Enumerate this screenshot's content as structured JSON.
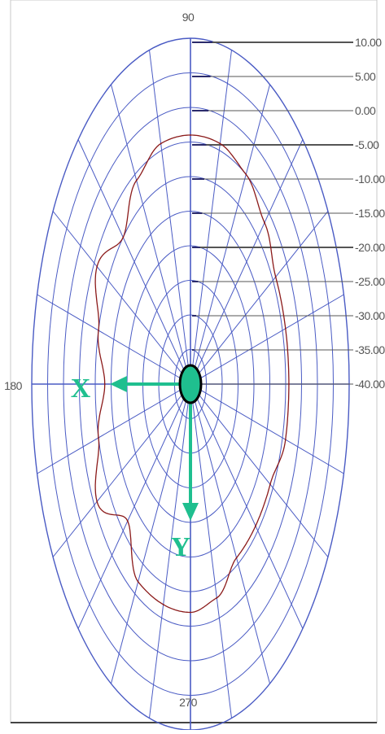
{
  "chart_data": {
    "type": "polar",
    "title": "",
    "angle_labels": [
      "90",
      "180",
      "270"
    ],
    "ring_labels": [
      "10.00",
      "5.00",
      "0.00",
      "-5.00",
      "-10.00",
      "-15.00",
      "-20.00",
      "-25.00",
      "-30.00",
      "-35.00",
      "-40.00"
    ],
    "radial_range": [
      -40,
      10
    ],
    "angular_grid_step_deg": 15,
    "grid": true,
    "series": [
      {
        "color": "#8b1a1a",
        "points": [
          {
            "angle": 0,
            "value": -9
          },
          {
            "angle": 15,
            "value": -9
          },
          {
            "angle": 30,
            "value": -9
          },
          {
            "angle": 45,
            "value": -7
          },
          {
            "angle": 60,
            "value": -5
          },
          {
            "angle": 75,
            "value": -4
          },
          {
            "angle": 90,
            "value": -4
          },
          {
            "angle": 105,
            "value": -4
          },
          {
            "angle": 120,
            "value": -6
          },
          {
            "angle": 135,
            "value": -10
          },
          {
            "angle": 150,
            "value": -6
          },
          {
            "angle": 165,
            "value": -10
          },
          {
            "angle": 180,
            "value": -13
          },
          {
            "angle": 195,
            "value": -10
          },
          {
            "angle": 210,
            "value": -6
          },
          {
            "angle": 225,
            "value": -12
          },
          {
            "angle": 240,
            "value": -7
          },
          {
            "angle": 255,
            "value": -7
          },
          {
            "angle": 270,
            "value": -7
          },
          {
            "angle": 285,
            "value": -8
          },
          {
            "angle": 300,
            "value": -11
          },
          {
            "angle": 315,
            "value": -11
          },
          {
            "angle": 330,
            "value": -11
          },
          {
            "angle": 345,
            "value": -9
          }
        ]
      }
    ],
    "annotations": {
      "x_arrow_label": "X",
      "y_arrow_label": "Y",
      "arrow_color": "#1fbf8f",
      "center_marker_color": "#1fbf8f"
    }
  }
}
